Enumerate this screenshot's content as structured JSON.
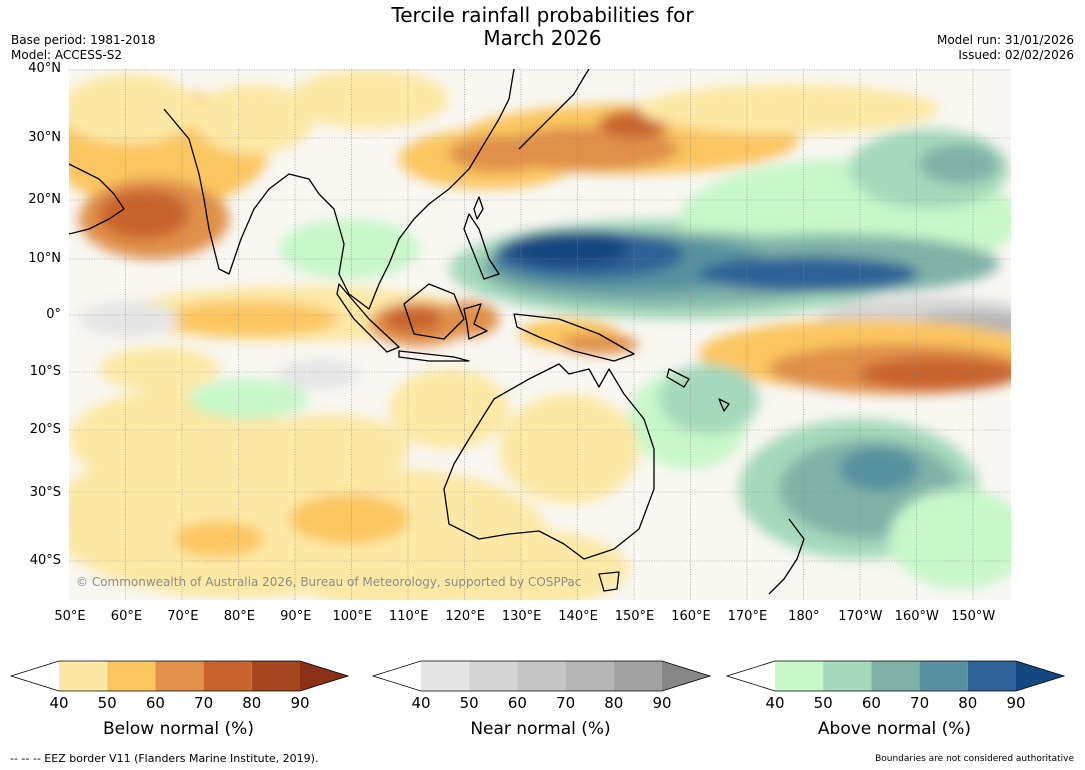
{
  "title_line1": "Tercile rainfall probabilities for",
  "title_line2": "March 2026",
  "base_period": "Base period: 1981-2018",
  "model": "Model: ACCESS-S2",
  "model_run": "Model run: 31/01/2026",
  "issued": "Issued: 02/02/2026",
  "lat_labels": [
    "40°N",
    "30°N",
    "20°N",
    "10°N",
    "0°",
    "10°S",
    "20°S",
    "30°S",
    "40°S"
  ],
  "lon_labels": [
    "50°E",
    "60°E",
    "70°E",
    "80°E",
    "90°E",
    "100°E",
    "110°E",
    "120°E",
    "130°E",
    "140°E",
    "150°E",
    "160°E",
    "170°E",
    "180°",
    "170°W",
    "160°W",
    "150°W"
  ],
  "copyright": "© Commonwealth of Australia 2026, Bureau of Meteorology, supported by COSPPac",
  "colorbars": [
    {
      "title": "Below normal (%)",
      "ticks": [
        "40",
        "50",
        "60",
        "70",
        "80",
        "90"
      ],
      "colors": [
        "#ffffff",
        "#fde9a6",
        "#fbc660",
        "#e0904a",
        "#c9632d",
        "#a4461f",
        "#8a3017"
      ]
    },
    {
      "title": "Near normal (%)",
      "ticks": [
        "40",
        "50",
        "60",
        "70",
        "80",
        "90"
      ],
      "colors": [
        "#ffffff",
        "#e6e6e6",
        "#d5d5d5",
        "#c6c6c6",
        "#b4b4b4",
        "#a2a2a2",
        "#868686"
      ]
    },
    {
      "title": "Above normal (%)",
      "ticks": [
        "40",
        "50",
        "60",
        "70",
        "80",
        "90"
      ],
      "colors": [
        "#ffffff",
        "#c8f7c9",
        "#a5d9bb",
        "#7fb3a8",
        "#57919f",
        "#2f6296",
        "#14477f"
      ]
    }
  ],
  "footer_left": "-- -- -- EEZ border V11 (Flanders Marine Institute, 2019).",
  "footer_right": "Boundaries are not considered authoritative"
}
